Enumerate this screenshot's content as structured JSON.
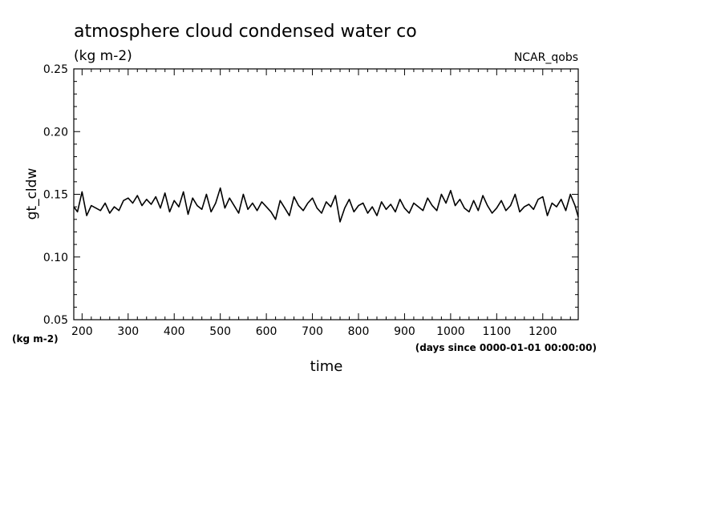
{
  "chart_data": {
    "type": "line",
    "title": "atmosphere cloud condensed water co",
    "subtitle": "(kg m-2)",
    "source_label": "NCAR_qobs",
    "ylabel": "gt_cldw",
    "yunits": "(kg m-2)",
    "xlabel": "time",
    "xunits": "(days since 0000-01-01 00:00:00)",
    "xlim": [
      182,
      1277
    ],
    "ylim": [
      0.05,
      0.25
    ],
    "xticks": [
      200,
      300,
      400,
      500,
      600,
      700,
      800,
      900,
      1000,
      1100,
      1200
    ],
    "xtick_labels": [
      "200",
      "300",
      "400",
      "500",
      "600",
      "700",
      "800",
      "900",
      "1000",
      "1100",
      "1200"
    ],
    "yticks": [
      0.05,
      0.1,
      0.15,
      0.2,
      0.25
    ],
    "ytick_labels": [
      "0.05",
      "0.10",
      "0.15",
      "0.20",
      "0.25"
    ],
    "grid": false,
    "line_color": "#000000",
    "series": [
      {
        "x": [
          182,
          190,
          200,
          210,
          220,
          230,
          240,
          250,
          260,
          270,
          280,
          290,
          300,
          310,
          320,
          330,
          340,
          350,
          360,
          370,
          380,
          390,
          400,
          410,
          420,
          430,
          440,
          450,
          460,
          470,
          480,
          490,
          500,
          510,
          520,
          530,
          540,
          550,
          560,
          570,
          580,
          590,
          600,
          610,
          620,
          630,
          640,
          650,
          660,
          670,
          680,
          690,
          700,
          710,
          720,
          730,
          740,
          750,
          760,
          770,
          780,
          790,
          800,
          810,
          820,
          830,
          840,
          850,
          860,
          870,
          880,
          890,
          900,
          910,
          920,
          930,
          940,
          950,
          960,
          970,
          980,
          990,
          1000,
          1010,
          1020,
          1030,
          1040,
          1050,
          1060,
          1070,
          1080,
          1090,
          1100,
          1110,
          1120,
          1130,
          1140,
          1150,
          1160,
          1170,
          1180,
          1190,
          1200,
          1210,
          1220,
          1230,
          1240,
          1250,
          1260,
          1270,
          1277
        ],
        "values": [
          0.14,
          0.136,
          0.152,
          0.133,
          0.141,
          0.139,
          0.137,
          0.143,
          0.135,
          0.14,
          0.137,
          0.145,
          0.147,
          0.143,
          0.149,
          0.141,
          0.146,
          0.142,
          0.148,
          0.139,
          0.151,
          0.136,
          0.145,
          0.14,
          0.152,
          0.134,
          0.147,
          0.141,
          0.138,
          0.15,
          0.136,
          0.143,
          0.155,
          0.139,
          0.147,
          0.141,
          0.135,
          0.15,
          0.138,
          0.143,
          0.137,
          0.144,
          0.14,
          0.136,
          0.13,
          0.145,
          0.139,
          0.133,
          0.148,
          0.141,
          0.137,
          0.143,
          0.147,
          0.139,
          0.135,
          0.144,
          0.14,
          0.149,
          0.128,
          0.139,
          0.146,
          0.136,
          0.141,
          0.143,
          0.135,
          0.14,
          0.133,
          0.144,
          0.138,
          0.142,
          0.136,
          0.146,
          0.139,
          0.135,
          0.143,
          0.14,
          0.137,
          0.147,
          0.141,
          0.137,
          0.15,
          0.143,
          0.153,
          0.141,
          0.146,
          0.139,
          0.136,
          0.145,
          0.137,
          0.149,
          0.141,
          0.135,
          0.139,
          0.145,
          0.137,
          0.141,
          0.15,
          0.136,
          0.14,
          0.142,
          0.138,
          0.146,
          0.148,
          0.133,
          0.143,
          0.14,
          0.146,
          0.137,
          0.15,
          0.141,
          0.132
        ]
      }
    ]
  }
}
